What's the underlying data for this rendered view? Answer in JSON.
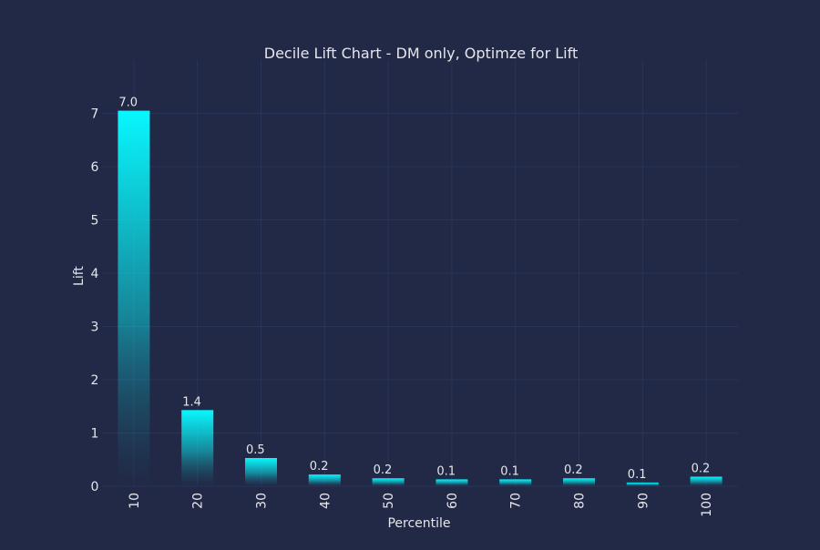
{
  "theme": {
    "background": "#212946",
    "grid": "#2A3459",
    "text": "#E6E6EA",
    "bar_top": "#08F7FE",
    "bar_bottom": "#212946"
  },
  "chart_data": {
    "type": "bar",
    "title": "Decile Lift Chart - DM only, Optimze for Lift",
    "xlabel": "Percentile",
    "ylabel": "Lift",
    "categories": [
      "10",
      "20",
      "30",
      "40",
      "50",
      "60",
      "70",
      "80",
      "90",
      "100"
    ],
    "values": [
      7.05,
      1.43,
      0.53,
      0.22,
      0.15,
      0.13,
      0.13,
      0.15,
      0.07,
      0.18
    ],
    "data_labels": [
      "7.0",
      "1.4",
      "0.5",
      "0.2",
      "0.2",
      "0.1",
      "0.1",
      "0.2",
      "0.1",
      "0.2"
    ],
    "yticks": [
      "0",
      "1",
      "2",
      "3",
      "4",
      "5",
      "6",
      "7"
    ],
    "ylim": [
      0,
      7.8
    ],
    "grid": true,
    "legend": "none"
  }
}
